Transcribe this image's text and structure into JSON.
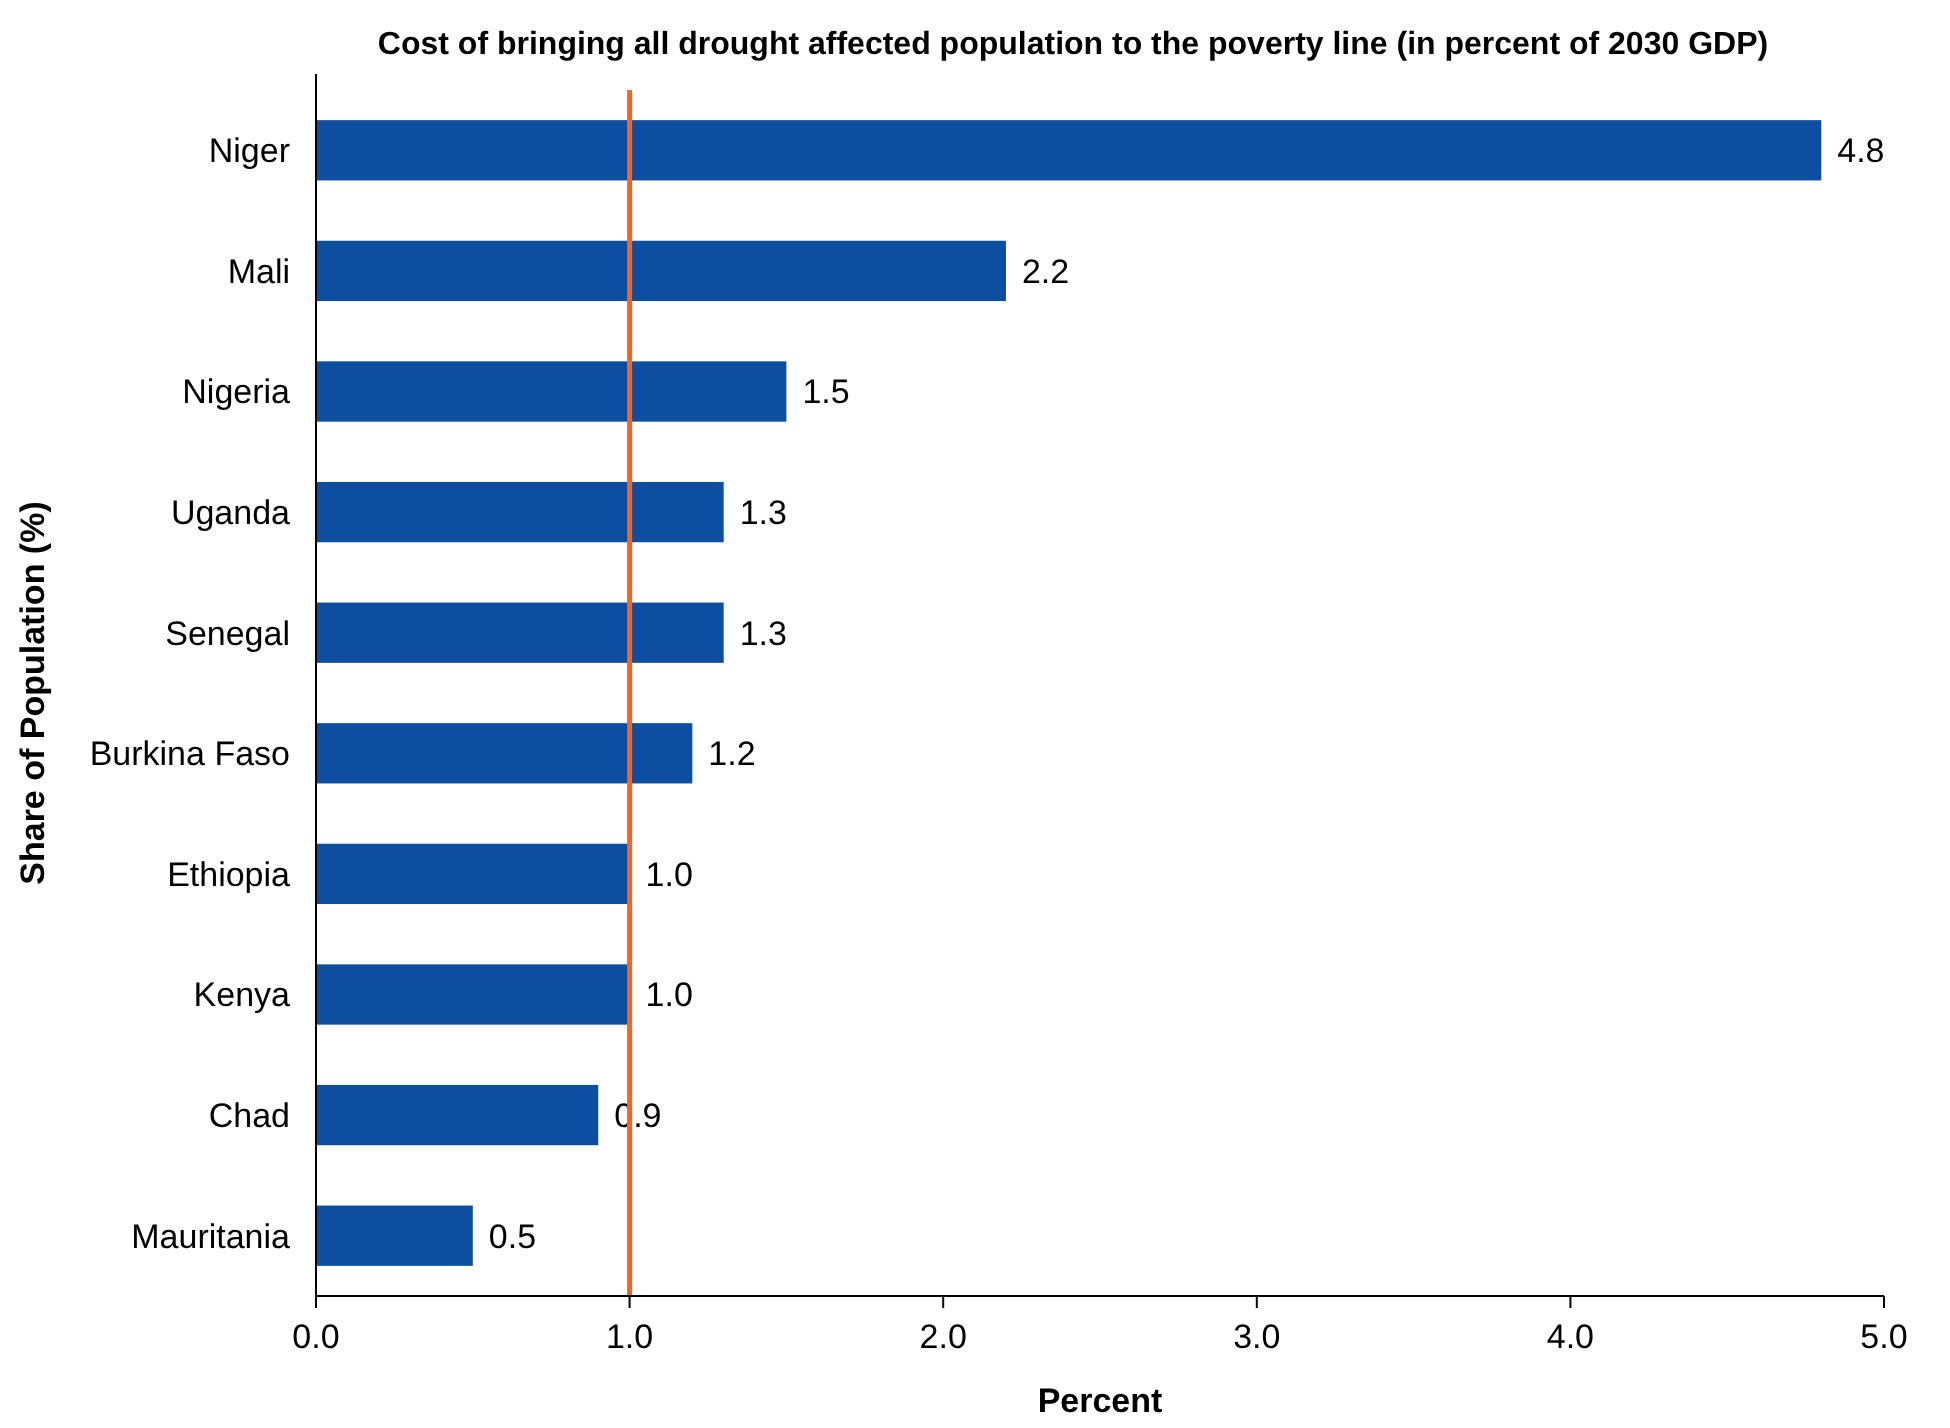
{
  "chart_data": {
    "type": "bar",
    "orientation": "horizontal",
    "title": "Cost of bringing all drought affected population to the poverty line (in percent of 2030 GDP)",
    "xlabel": "Percent",
    "ylabel": "Share of Population (%)",
    "categories": [
      "Niger",
      "Mali",
      "Nigeria",
      "Uganda",
      "Senegal",
      "Burkina Faso",
      "Ethiopia",
      "Kenya",
      "Chad",
      "Mauritania"
    ],
    "values": [
      4.8,
      2.2,
      1.5,
      1.3,
      1.3,
      1.2,
      1.0,
      1.0,
      0.9,
      0.5
    ],
    "value_labels": [
      "4.8",
      "2.2",
      "1.5",
      "1.3",
      "1.3",
      "1.2",
      "1.0",
      "1.0",
      "0.9",
      "0.5"
    ],
    "color": "#0d4ea1",
    "xlim": [
      0,
      5
    ],
    "xticks": [
      {
        "value": 0,
        "label": "0.0"
      },
      {
        "value": 1,
        "label": "1.0"
      },
      {
        "value": 2,
        "label": "2.0"
      },
      {
        "value": 3,
        "label": "3.0"
      },
      {
        "value": 4,
        "label": "4.0"
      },
      {
        "value": 5,
        "label": "5.0"
      }
    ],
    "ref_lines": [
      {
        "axis": "x",
        "value": 1,
        "color": "#f26522"
      }
    ],
    "grid": false
  }
}
